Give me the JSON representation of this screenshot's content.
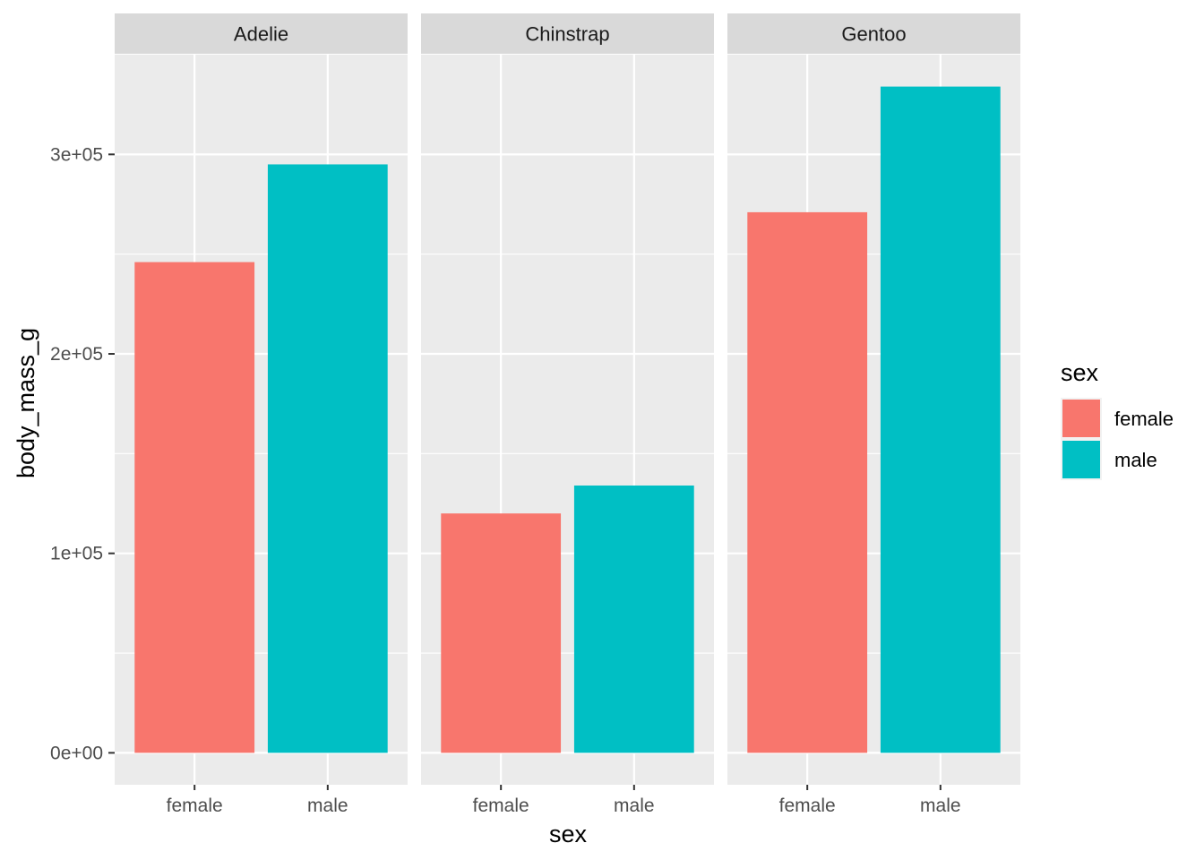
{
  "chart_data": {
    "type": "bar",
    "facets": [
      "Adelie",
      "Chinstrap",
      "Gentoo"
    ],
    "categories": [
      "female",
      "male"
    ],
    "values": [
      [
        246000,
        295000
      ],
      [
        120000,
        134000
      ],
      [
        271000,
        334000
      ]
    ],
    "xlabel": "sex",
    "ylabel": "body_mass_g",
    "ylim": [
      -16000,
      350000
    ],
    "yticks": [
      0,
      100000,
      200000,
      300000
    ],
    "ytick_labels": [
      "0e+00",
      "1e+05",
      "2e+05",
      "3e+05"
    ],
    "grid": true,
    "legend": {
      "title": "sex",
      "placement": "right",
      "entries": [
        {
          "label": "female",
          "color": "#F8766D"
        },
        {
          "label": "male",
          "color": "#00BFC4"
        }
      ]
    },
    "colors": {
      "female": "#F8766D",
      "male": "#00BFC4",
      "panel": "#EBEBEB",
      "strip": "#D9D9D9",
      "grid": "#FFFFFF"
    }
  }
}
